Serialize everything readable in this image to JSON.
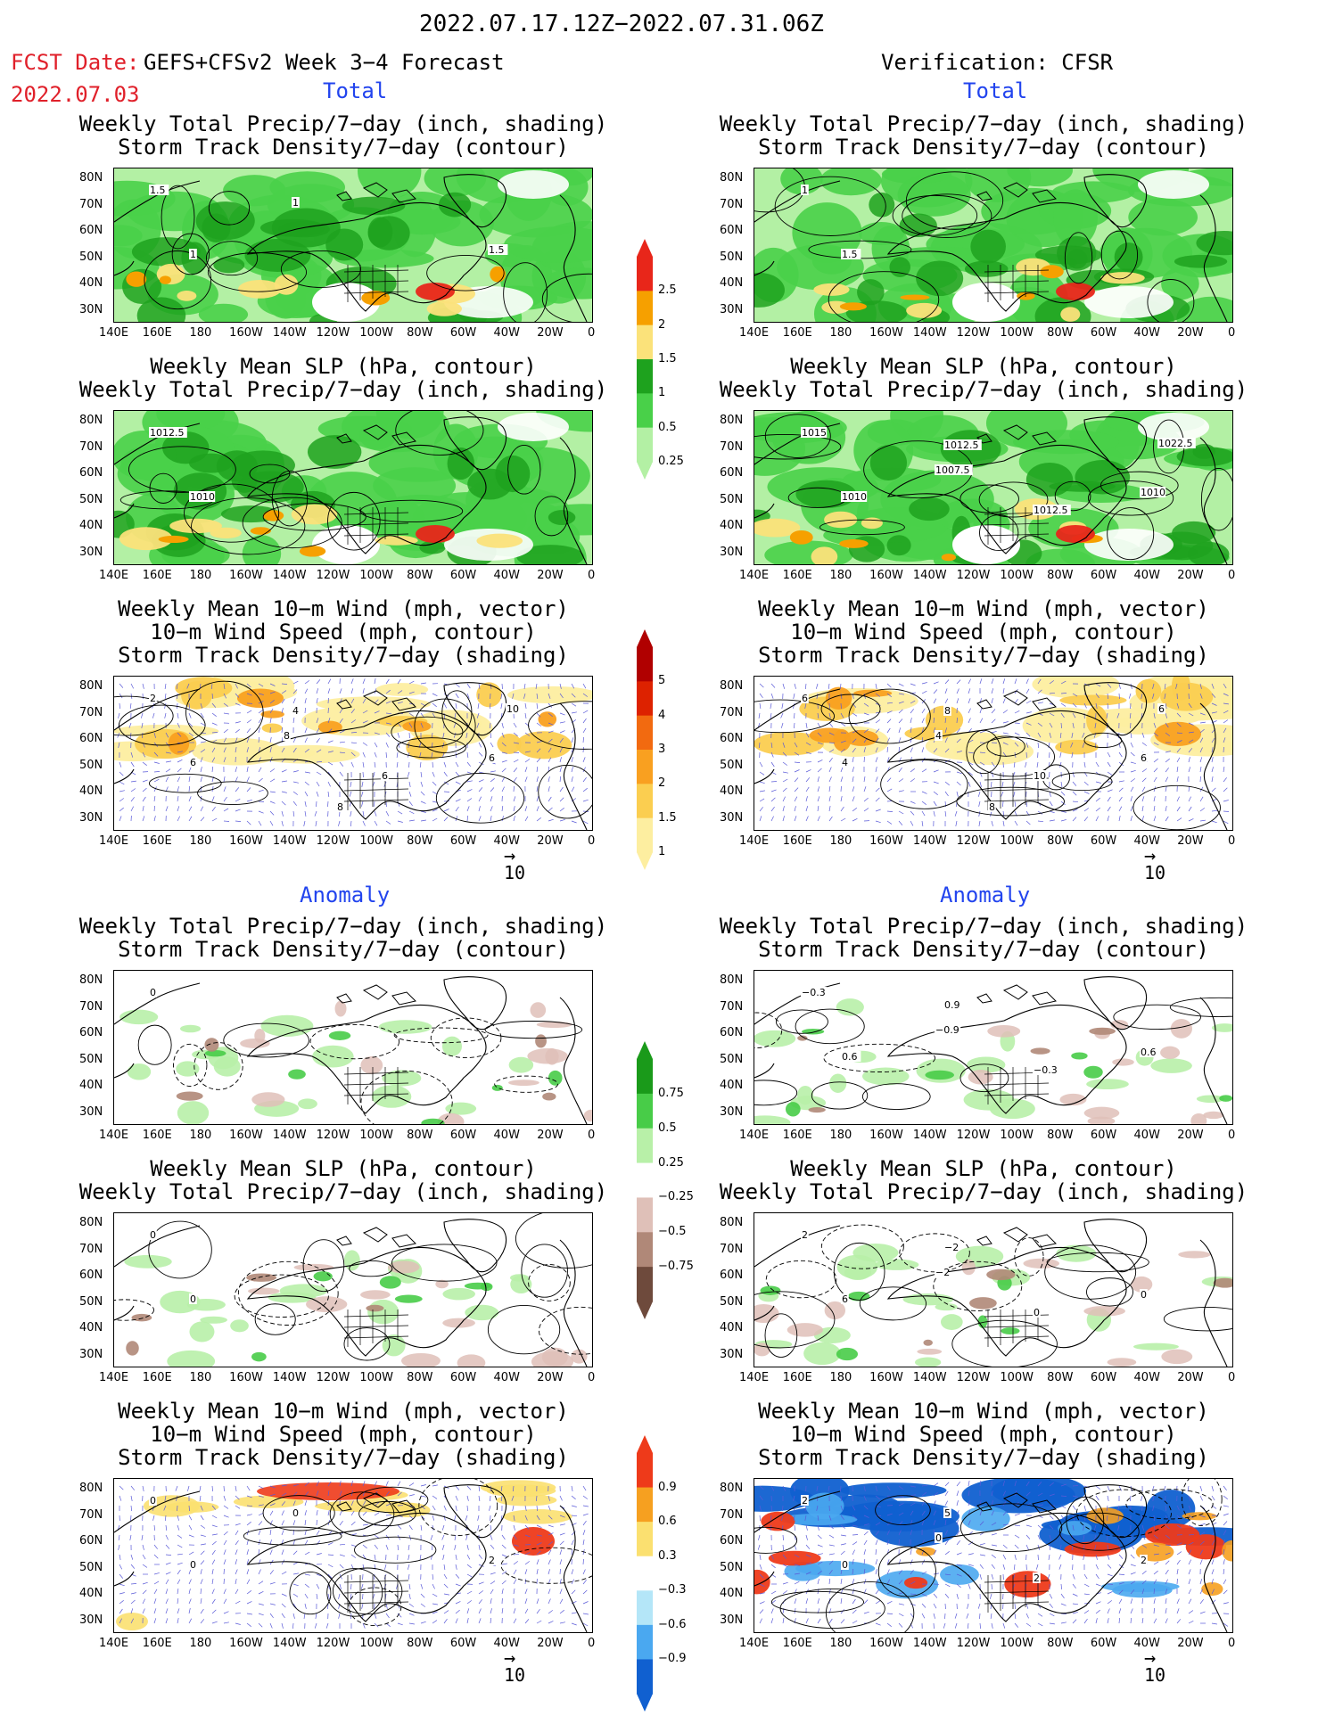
{
  "header": {
    "date_range": "2022.07.17.12Z−2022.07.31.06Z",
    "fcst_date_label": "FCST Date:",
    "fcst_model": "GEFS+CFSv2 Week 3−4 Forecast",
    "fcst_date": "2022.07.03",
    "verification": "Verification: CFSR",
    "total_label": "Total",
    "anomaly_label": "Anomaly"
  },
  "titles": {
    "precip_storm": [
      "Weekly Total Precip/7−day (inch, shading)",
      "Storm Track Density/7−day (contour)"
    ],
    "slp_precip": [
      "Weekly Mean SLP (hPa, contour)",
      "Weekly Total Precip/7−day (inch, shading)"
    ],
    "wind_storm": [
      "Weekly Mean 10−m Wind (mph, vector)",
      "10−m Wind Speed (mph, contour)",
      "Storm Track Density/7−day (shading)"
    ]
  },
  "axes": {
    "lat_labels": [
      "80N",
      "70N",
      "60N",
      "50N",
      "40N",
      "30N"
    ],
    "lon_labels": [
      "140E",
      "160E",
      "180",
      "160W",
      "140W",
      "120W",
      "100W",
      "80W",
      "60W",
      "40W",
      "20W",
      "0"
    ]
  },
  "ref_vector": "10",
  "colorbars": {
    "precip_total": {
      "labels": [
        "2.5",
        "2",
        "1.5",
        "1",
        "0.5",
        "0.25"
      ],
      "colors": [
        "#e8261a",
        "#f6a000",
        "#fbe27a",
        "#1ea21e",
        "#49d049",
        "#b3f0a4"
      ]
    },
    "storm_total": {
      "labels": [
        "5",
        "4",
        "3",
        "2",
        "1.5",
        "1"
      ],
      "colors": [
        "#b00000",
        "#dd2200",
        "#f26a10",
        "#f9a020",
        "#fbce50",
        "#fdeea0"
      ]
    },
    "precip_anom": {
      "labels": [
        "0.75",
        "0.5",
        "0.25",
        "−0.25",
        "−0.5",
        "−0.75"
      ],
      "colors": [
        "#1a9a1a",
        "#48cc48",
        "#b8f0a8",
        "#ffffff",
        "#dfc0b8",
        "#b08878",
        "#6e4a3c"
      ]
    },
    "storm_anom": {
      "labels": [
        "0.9",
        "0.6",
        "0.3",
        "−0.3",
        "−0.6",
        "−0.9"
      ],
      "colors": [
        "#ee3a1a",
        "#f6a020",
        "#fbe070",
        "#ffffff",
        "#b4e6f8",
        "#4aa8f0",
        "#1060d0"
      ]
    }
  },
  "panels": {
    "fc_total_precip_storm": {
      "contour_labels": [
        "1.5",
        "1",
        "1",
        "1.5"
      ]
    },
    "ob_total_precip_storm": {
      "contour_labels": [
        "1",
        "1.5"
      ]
    },
    "fc_total_slp_precip": {
      "contour_labels": [
        "1012.5",
        "1010"
      ]
    },
    "ob_total_slp_precip": {
      "contour_labels": [
        "1015",
        "1010",
        "1012.5",
        "1010",
        "1007.5",
        "1012.5",
        "1022.5"
      ]
    },
    "fc_total_wind": {
      "contour_labels": [
        "2",
        "6",
        "4",
        "6",
        "8",
        "6",
        "10",
        "8"
      ]
    },
    "ob_total_wind": {
      "contour_labels": [
        "6",
        "4",
        "8",
        "6",
        "4",
        "10",
        "6",
        "8"
      ]
    },
    "fc_anom_precip_storm": {
      "contour_labels": [
        "0"
      ]
    },
    "ob_anom_precip_storm": {
      "contour_labels": [
        "−0.3",
        "0.6",
        "0.9",
        "0.6",
        "−0.9",
        "−0.3"
      ]
    },
    "fc_anom_slp_precip": {
      "contour_labels": [
        "0",
        "0"
      ]
    },
    "ob_anom_slp_precip": {
      "contour_labels": [
        "2",
        "6",
        "−2",
        "0",
        "−2",
        "0"
      ]
    },
    "fc_anom_wind": {
      "contour_labels": [
        "0",
        "0",
        "0",
        "2"
      ]
    },
    "ob_anom_wind": {
      "contour_labels": [
        "2",
        "0",
        "5",
        "2",
        "0",
        "2"
      ]
    }
  }
}
